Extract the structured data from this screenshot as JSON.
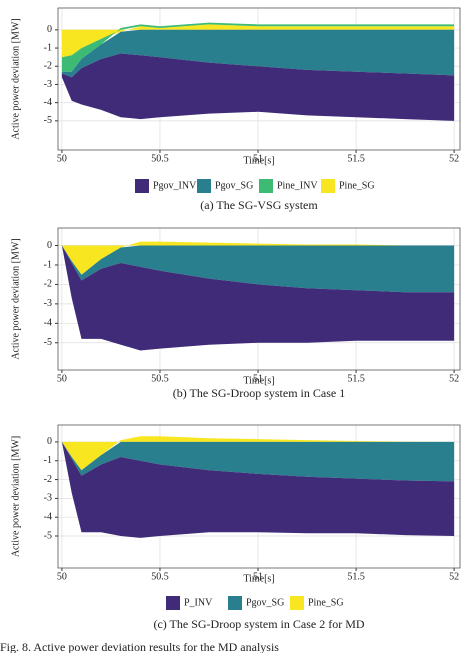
{
  "chart_data": [
    {
      "type": "area",
      "caption": "(a) The SG-VSG system",
      "ylabel": "Active power deviation [MW]",
      "xlabel": "Time[s]",
      "x": [
        50,
        50.05,
        50.1,
        50.2,
        50.3,
        50.4,
        50.5,
        50.75,
        51,
        51.25,
        51.5,
        51.75,
        52
      ],
      "series": [
        {
          "name": "Pgov_INV",
          "color": "#3f2b78",
          "values": [
            -0.2,
            -1.3,
            -2.0,
            -2.8,
            -3.5,
            -3.5,
            -3.3,
            -2.8,
            -2.5,
            -2.5,
            -2.5,
            -2.5,
            -2.5
          ]
        },
        {
          "name": "Pgov_SG",
          "color": "#2a7f8e",
          "values": [
            -0.1,
            -0.3,
            -0.5,
            -0.8,
            -1.2,
            -1.4,
            -1.5,
            -1.8,
            -2.0,
            -2.2,
            -2.3,
            -2.4,
            -2.5
          ]
        },
        {
          "name": "Pine_INV",
          "color": "#3dba74",
          "values": [
            -0.8,
            -0.9,
            -0.6,
            -0.3,
            0.1,
            0.1,
            0.1,
            0.1,
            0.1,
            0.1,
            0.1,
            0.1,
            0.1
          ]
        },
        {
          "name": "Pine_SG",
          "color": "#f8e621",
          "values": [
            -1.5,
            -1.4,
            -1.0,
            -0.5,
            -0.1,
            0.2,
            0.1,
            0.3,
            0.2,
            0.2,
            0.2,
            0.2,
            0.2
          ]
        }
      ],
      "xlim": [
        49.98,
        52.03
      ],
      "ylim": [
        -6.6,
        1.2
      ],
      "xticks": [
        50,
        50.5,
        51,
        51.5,
        52
      ],
      "yticks": [
        0,
        -1,
        -2,
        -3,
        -4,
        -5
      ],
      "grid": true,
      "legend": "bottom"
    },
    {
      "type": "area",
      "caption": "(b) The SG-Droop system in Case 1",
      "ylabel": "Active power deviation [MW]",
      "xlabel": "Time[s]",
      "x": [
        50,
        50.05,
        50.1,
        50.2,
        50.3,
        50.4,
        50.5,
        50.75,
        51,
        51.25,
        51.5,
        51.75,
        52
      ],
      "series": [
        {
          "color": "#3f2b78",
          "values": [
            0,
            -1.8,
            -3.0,
            -3.6,
            -4.2,
            -4.3,
            -4.0,
            -3.4,
            -3.0,
            -2.8,
            -2.6,
            -2.5,
            -2.5
          ]
        },
        {
          "color": "#2a7f8e",
          "values": [
            0,
            -0.1,
            -0.3,
            -0.5,
            -0.8,
            -1.1,
            -1.3,
            -1.7,
            -2.0,
            -2.2,
            -2.3,
            -2.4,
            -2.4
          ]
        },
        {
          "color": "#f8e621",
          "values": [
            0,
            -0.8,
            -1.5,
            -0.7,
            -0.1,
            0.2,
            0.2,
            0.15,
            0.1,
            0.05,
            0.05,
            0,
            0
          ]
        }
      ],
      "xlim": [
        49.98,
        52.03
      ],
      "ylim": [
        -6.4,
        0.9
      ],
      "xticks": [
        50,
        50.5,
        51,
        51.5,
        52
      ],
      "yticks": [
        0,
        -1,
        -2,
        -3,
        -4,
        -5
      ],
      "grid": true
    },
    {
      "type": "area",
      "caption": "(c) The SG-Droop system in Case 2 for MD",
      "ylabel": "Active power deviation [MW]",
      "xlabel": "Time[s]",
      "x": [
        50,
        50.05,
        50.1,
        50.2,
        50.3,
        50.4,
        50.5,
        50.75,
        51,
        51.25,
        51.5,
        51.75,
        52
      ],
      "series": [
        {
          "name": "P_INV",
          "color": "#3f2b78",
          "values": [
            0,
            -1.8,
            -3.0,
            -3.6,
            -4.2,
            -4.1,
            -3.8,
            -3.3,
            -3.1,
            -3.0,
            -2.9,
            -2.9,
            -2.9
          ]
        },
        {
          "name": "Pgov_SG",
          "color": "#2a7f8e",
          "values": [
            0,
            -0.1,
            -0.3,
            -0.5,
            -0.8,
            -1.0,
            -1.2,
            -1.5,
            -1.7,
            -1.85,
            -1.95,
            -2.05,
            -2.1
          ]
        },
        {
          "name": "Pine_SG",
          "color": "#f8e621",
          "values": [
            0,
            -0.8,
            -1.5,
            -0.7,
            0.1,
            0.3,
            0.3,
            0.2,
            0.15,
            0.1,
            0.05,
            0.02,
            0
          ]
        }
      ],
      "xlim": [
        49.98,
        52.03
      ],
      "ylim": [
        -6.7,
        0.9
      ],
      "xticks": [
        50,
        50.5,
        51,
        51.5,
        52
      ],
      "yticks": [
        0,
        -1,
        -2,
        -3,
        -4,
        -5
      ],
      "grid": true,
      "legend": "bottom"
    }
  ],
  "figure_caption": "Fig. 8.   Active power deviation results for the MD analysis"
}
